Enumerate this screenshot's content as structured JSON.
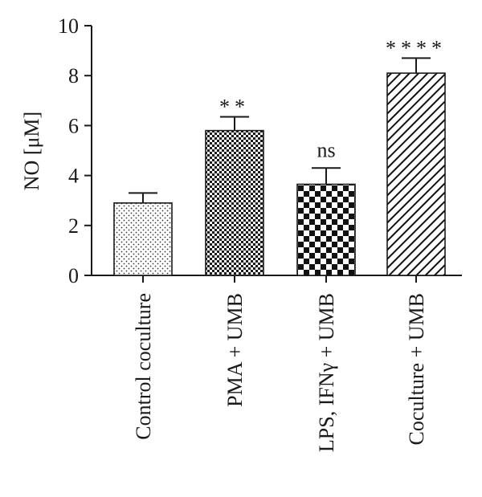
{
  "chart_data": {
    "type": "bar",
    "ylabel": "NO [μM]",
    "ylim": [
      0,
      10
    ],
    "yticks": [
      0,
      2,
      4,
      6,
      8,
      10
    ],
    "categories": [
      "Control coculture",
      "PMA + UMB",
      "LPS, IFNγ + UMB",
      "Coculture + UMB"
    ],
    "values": [
      2.9,
      5.8,
      3.65,
      8.1
    ],
    "errors": [
      0.4,
      0.55,
      0.65,
      0.6
    ],
    "annotations": [
      "",
      "**",
      "ns",
      "****"
    ],
    "patterns": [
      "dots",
      "fine-check",
      "checker",
      "diagonal"
    ]
  }
}
